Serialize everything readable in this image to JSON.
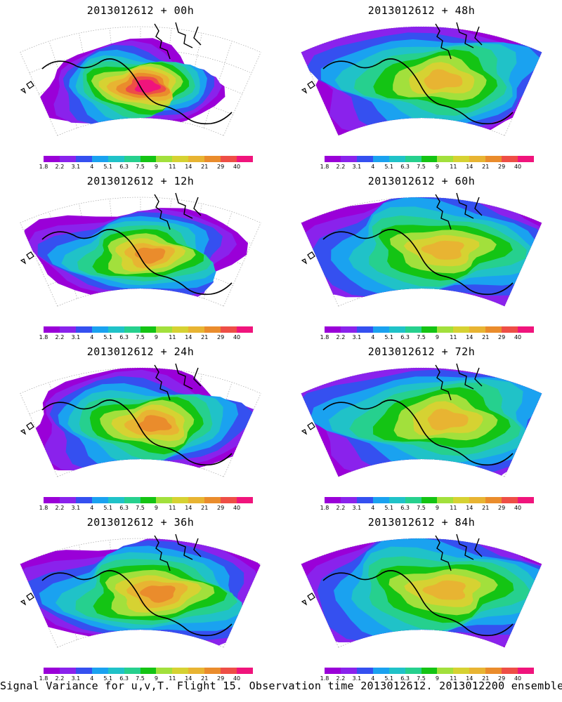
{
  "caption": "Signal Variance for u,v,T. Flight 15. Observation time 2013012612. 2013012200 ensemble.",
  "colorbar": {
    "ticks": [
      "1.8",
      "2.2",
      "3.1",
      "4",
      "5.1",
      "6.3",
      "7.5",
      "9",
      "11",
      "14",
      "21",
      "29",
      "40"
    ],
    "colors": [
      "#9a00d8",
      "#8a22ec",
      "#3550f0",
      "#1aa2f0",
      "#20c2c8",
      "#26d08e",
      "#14c414",
      "#a2e03c",
      "#d6d232",
      "#e8b432",
      "#ea8c2c",
      "#ee4e46",
      "#f0147c"
    ]
  },
  "panels": [
    {
      "title": "2013012612 + 00h",
      "forecast_hour": 0,
      "spread": 0.45,
      "peak_level": 12
    },
    {
      "title": "2013012612 + 48h",
      "forecast_hour": 48,
      "spread": 0.9,
      "peak_level": 9
    },
    {
      "title": "2013012612 + 12h",
      "forecast_hour": 12,
      "spread": 0.6,
      "peak_level": 10
    },
    {
      "title": "2013012612 + 60h",
      "forecast_hour": 60,
      "spread": 0.95,
      "peak_level": 9
    },
    {
      "title": "2013012612 + 24h",
      "forecast_hour": 24,
      "spread": 0.7,
      "peak_level": 10
    },
    {
      "title": "2013012612 + 72h",
      "forecast_hour": 72,
      "spread": 1.0,
      "peak_level": 9
    },
    {
      "title": "2013012612 + 36h",
      "forecast_hour": 36,
      "spread": 0.8,
      "peak_level": 10
    },
    {
      "title": "2013012612 + 84h",
      "forecast_hour": 84,
      "spread": 1.0,
      "peak_level": 9
    }
  ]
}
